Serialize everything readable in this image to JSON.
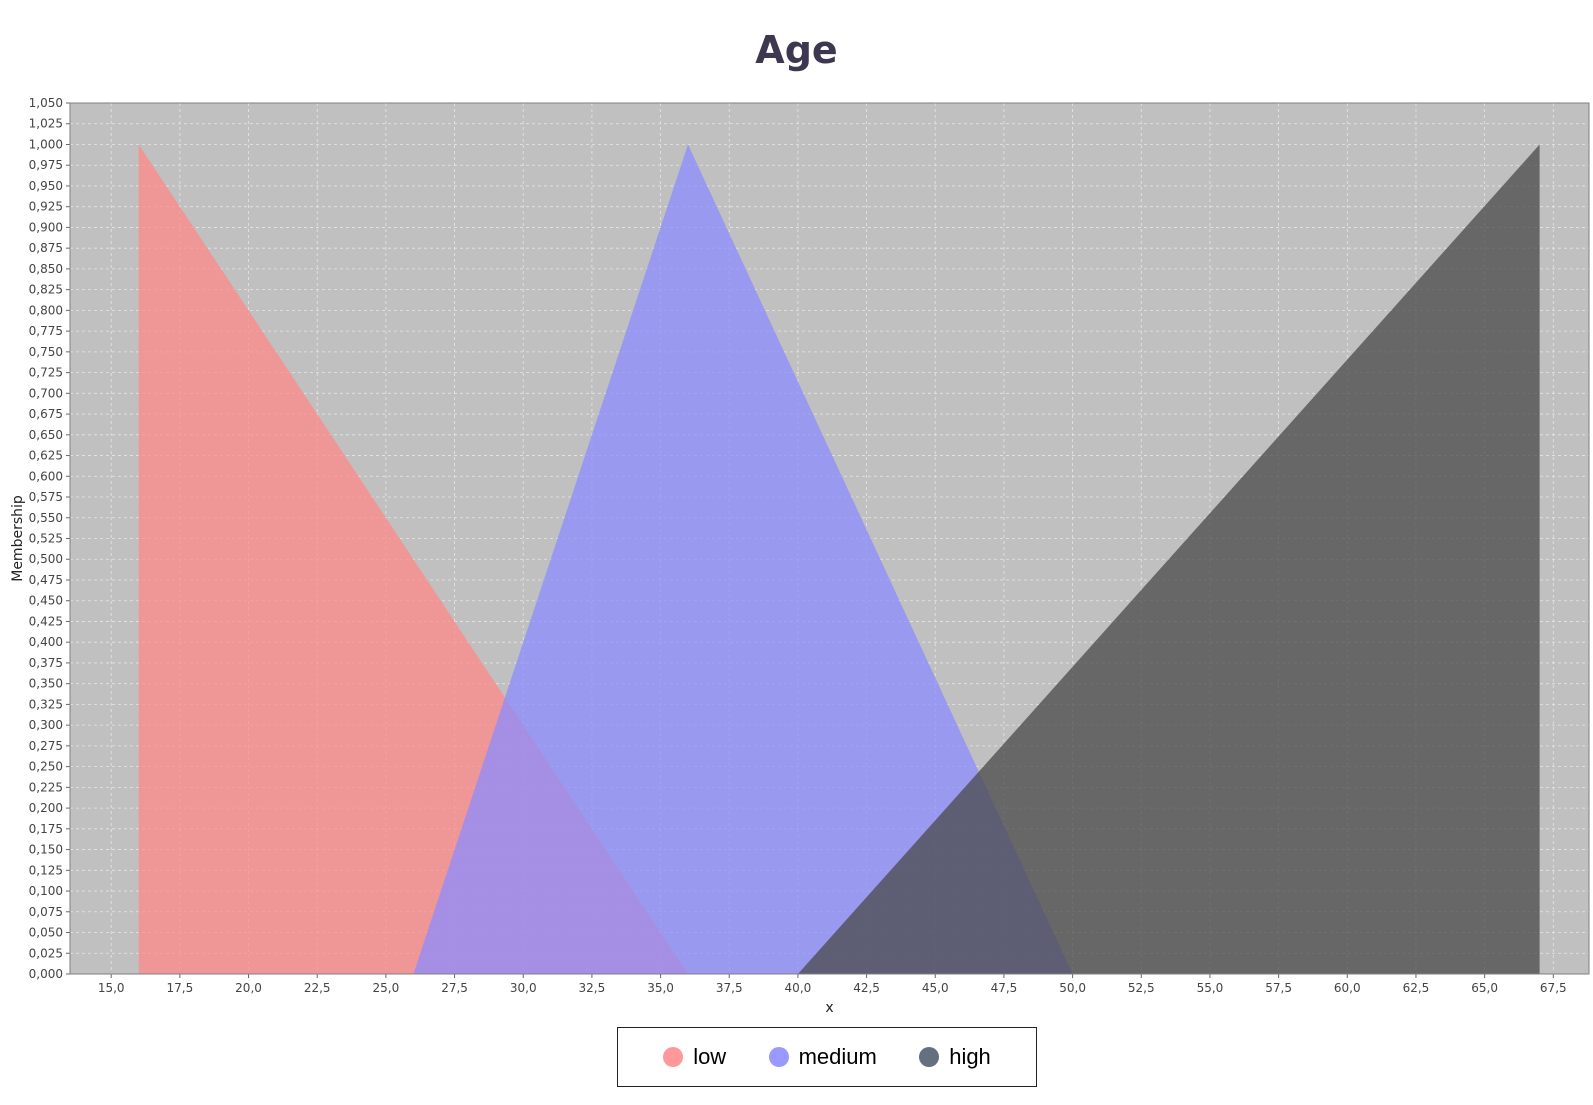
{
  "chart_data": {
    "type": "area",
    "title": "Age",
    "xlabel": "x",
    "ylabel": "Membership",
    "xlim": [
      13.5,
      68.8
    ],
    "ylim": [
      0,
      1.05
    ],
    "x_ticks": [
      "15,0",
      "17,5",
      "20,0",
      "22,5",
      "25,0",
      "27,5",
      "30,0",
      "32,5",
      "35,0",
      "37,5",
      "40,0",
      "42,5",
      "45,0",
      "47,5",
      "50,0",
      "52,5",
      "55,0",
      "57,5",
      "60,0",
      "62,5",
      "65,0",
      "67,5"
    ],
    "y_ticks": [
      "0,000",
      "0,025",
      "0,050",
      "0,075",
      "0,100",
      "0,125",
      "0,150",
      "0,175",
      "0,200",
      "0,225",
      "0,250",
      "0,275",
      "0,300",
      "0,325",
      "0,350",
      "0,375",
      "0,400",
      "0,425",
      "0,450",
      "0,475",
      "0,500",
      "0,525",
      "0,550",
      "0,575",
      "0,600",
      "0,625",
      "0,650",
      "0,675",
      "0,700",
      "0,725",
      "0,750",
      "0,775",
      "0,800",
      "0,825",
      "0,850",
      "0,875",
      "0,900",
      "0,925",
      "0,950",
      "0,975",
      "1,000",
      "1,025",
      "1,050"
    ],
    "grid": true,
    "legend_position": "bottom",
    "series": [
      {
        "name": "low",
        "color": "#ff8a8a",
        "points": [
          [
            16,
            0
          ],
          [
            16,
            1
          ],
          [
            36,
            0
          ]
        ]
      },
      {
        "name": "medium",
        "color": "#8c8cff",
        "points": [
          [
            26,
            0
          ],
          [
            36,
            1
          ],
          [
            50,
            0
          ]
        ]
      },
      {
        "name": "high",
        "color": "#4a4a4a",
        "points": [
          [
            40,
            0
          ],
          [
            67,
            1
          ],
          [
            67,
            0
          ]
        ]
      }
    ]
  },
  "legend": {
    "items": [
      {
        "label": "low",
        "color": "#ff9999"
      },
      {
        "label": "medium",
        "color": "#9999ff"
      },
      {
        "label": "high",
        "color": "#647080"
      }
    ]
  }
}
